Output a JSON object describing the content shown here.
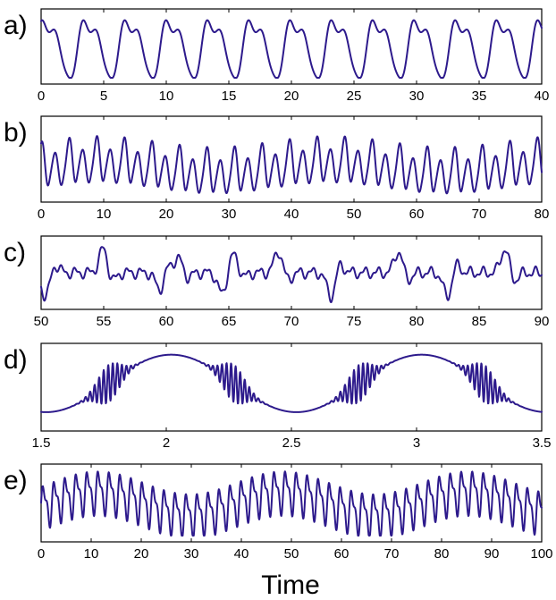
{
  "xlabel": "Time",
  "line_color": "#2d1a8c",
  "chart_data": [
    {
      "type": "line",
      "panel": "a)",
      "xlim": [
        0,
        40
      ],
      "xticks": [
        0,
        5,
        10,
        15,
        20,
        25,
        30,
        35,
        40
      ],
      "tick_labels": [
        "0",
        "5",
        "10",
        "15",
        "20",
        "25",
        "30",
        "35",
        "40"
      ],
      "signal": "periodic",
      "period": 3.3,
      "notes": "regular periodic oscillation with shoulder"
    },
    {
      "type": "line",
      "panel": "b)",
      "xlim": [
        0,
        80
      ],
      "xticks": [
        0,
        10,
        20,
        30,
        40,
        50,
        60,
        70,
        80
      ],
      "tick_labels": [
        "0",
        "10",
        "20",
        "30",
        "40",
        "50",
        "60",
        "70",
        "80"
      ],
      "signal": "period-doubled",
      "period": 4.4,
      "notes": "alternating large/small spikes"
    },
    {
      "type": "line",
      "panel": "c)",
      "xlim": [
        50,
        90
      ],
      "xticks": [
        50,
        55,
        60,
        65,
        70,
        75,
        80,
        85,
        90
      ],
      "tick_labels": [
        "50",
        "55",
        "60",
        "65",
        "70",
        "75",
        "80",
        "85",
        "90"
      ],
      "signal": "intermittent",
      "period": 1.0,
      "notes": "small oscillations with irregular large bursts"
    },
    {
      "type": "line",
      "panel": "d)",
      "xlim": [
        1.5,
        3.5
      ],
      "xticks": [
        1.5,
        2,
        2.5,
        3,
        3.5
      ],
      "tick_labels": [
        "1.5",
        "2",
        "2.5",
        "3",
        "3.5"
      ],
      "signal": "bursting",
      "period": 1.0,
      "notes": "slow wave with fast oscillation bursts"
    },
    {
      "type": "line",
      "panel": "e)",
      "xlim": [
        0,
        100
      ],
      "xticks": [
        0,
        10,
        20,
        30,
        40,
        50,
        60,
        70,
        80,
        90,
        100
      ],
      "tick_labels": [
        "0",
        "10",
        "20",
        "30",
        "40",
        "50",
        "60",
        "70",
        "80",
        "90",
        "100"
      ],
      "signal": "modulated",
      "period": 2.2,
      "notes": "fast oscillation with slow envelope shift"
    }
  ]
}
